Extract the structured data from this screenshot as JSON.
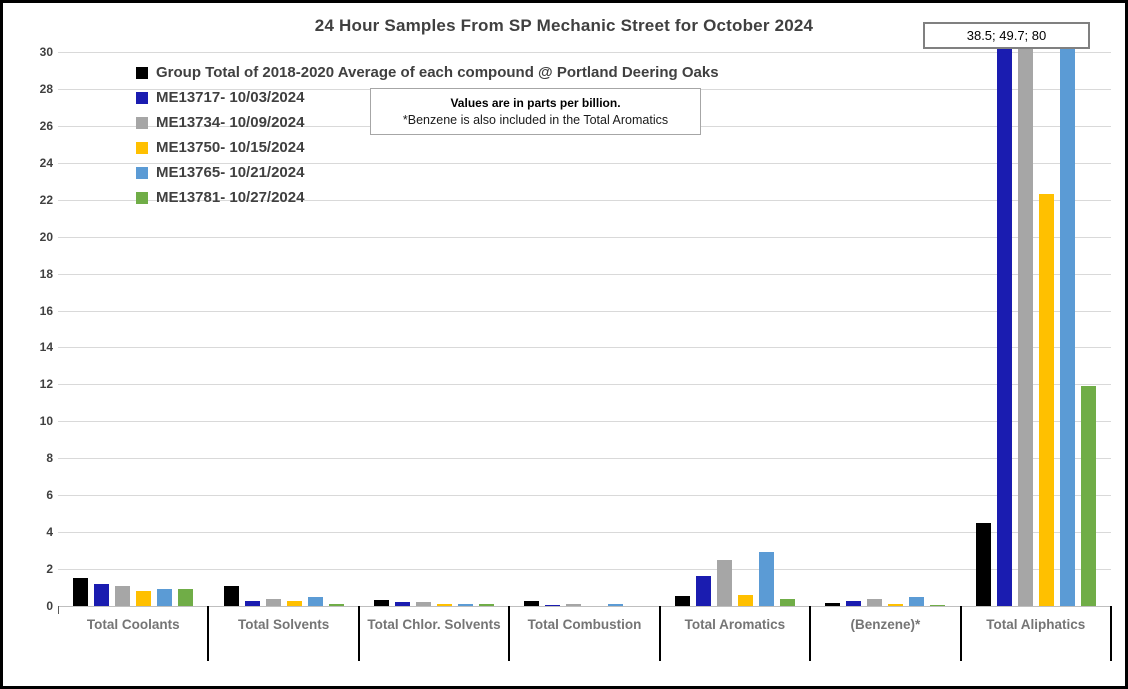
{
  "title": "24 Hour Samples From SP Mechanic Street for October 2024",
  "annotation_box": {
    "text": "38.5; 49.7; 80"
  },
  "note_box": {
    "line1": "Values are in parts per billion.",
    "line2": "*Benzene is also included in the Total Aromatics"
  },
  "legend": [
    {
      "label": "Group Total of 2018-2020 Average of each compound @ Portland Deering Oaks",
      "color": "#000000"
    },
    {
      "label": "ME13717- 10/03/2024",
      "color": "#1a1cb0"
    },
    {
      "label": "ME13734- 10/09/2024",
      "color": "#a6a6a6"
    },
    {
      "label": "ME13750- 10/15/2024",
      "color": "#ffc000"
    },
    {
      "label": "ME13765- 10/21/2024",
      "color": "#5b9bd5"
    },
    {
      "label": "ME13781- 10/27/2024",
      "color": "#70ad47"
    }
  ],
  "chart_data": {
    "type": "bar",
    "title": "24 Hour Samples From SP Mechanic Street for October 2024",
    "units_note": "Values are in parts per billion.",
    "benzene_note": "*Benzene is also included in the Total Aromatics",
    "categories": [
      "Total Coolants",
      "Total Solvents",
      "Total Chlor. Solvents",
      "Total Combustion",
      "Total Aromatics",
      "(Benzene)*",
      "Total Aliphatics"
    ],
    "series": [
      {
        "name": "Group Total of 2018-2020 Average of each compound @ Portland Deering Oaks",
        "color": "#000000",
        "values": [
          1.5,
          1.1,
          0.3,
          0.25,
          0.55,
          0.15,
          4.5
        ]
      },
      {
        "name": "ME13717- 10/03/2024",
        "color": "#1a1cb0",
        "values": [
          1.2,
          0.25,
          0.2,
          0.05,
          1.6,
          0.25,
          38.5
        ]
      },
      {
        "name": "ME13734- 10/09/2024",
        "color": "#a6a6a6",
        "values": [
          1.1,
          0.4,
          0.2,
          0.1,
          2.5,
          0.4,
          49.7
        ]
      },
      {
        "name": "ME13750- 10/15/2024",
        "color": "#ffc000",
        "values": [
          0.8,
          0.25,
          0.1,
          0.0,
          0.6,
          0.1,
          22.3
        ]
      },
      {
        "name": "ME13765- 10/21/2024",
        "color": "#5b9bd5",
        "values": [
          0.9,
          0.5,
          0.1,
          0.1,
          2.9,
          0.5,
          80
        ]
      },
      {
        "name": "ME13781- 10/27/2024",
        "color": "#70ad47",
        "values": [
          0.9,
          0.1,
          0.1,
          0.0,
          0.4,
          0.05,
          11.9
        ]
      }
    ],
    "ylim": [
      0,
      30
    ],
    "ytick_step": 2,
    "yticks": [
      0,
      2,
      4,
      6,
      8,
      10,
      12,
      14,
      16,
      18,
      20,
      22,
      24,
      26,
      28,
      30
    ],
    "grid": true,
    "legend_position": "top-left-inside",
    "clipped_values_label": "38.5; 49.7; 80",
    "clipped_series_at_total_aliphatics": [
      "ME13717- 10/03/2024",
      "ME13734- 10/09/2024",
      "ME13765- 10/21/2024"
    ]
  }
}
